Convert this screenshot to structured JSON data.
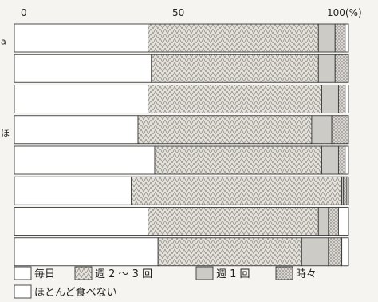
{
  "chart_data": {
    "type": "bar",
    "orientation": "horizontal",
    "stacked": true,
    "xlim": [
      0,
      100
    ],
    "x_tick_labels": [
      "0",
      "50",
      "100(%)"
    ],
    "categories": [
      "",
      "",
      "",
      "",
      "",
      "",
      "",
      ""
    ],
    "side_marks": [
      "a",
      "",
      "",
      "ほ",
      "",
      "",
      "",
      ""
    ],
    "series": [
      {
        "name": "毎日",
        "values": [
          40,
          41,
          40,
          37,
          42,
          35,
          40,
          43
        ]
      },
      {
        "name": "週 2 ～ 3 回",
        "values": [
          51,
          50,
          52,
          52,
          50,
          63,
          51,
          43
        ]
      },
      {
        "name": "週 1 回",
        "values": [
          5,
          5,
          5,
          6,
          5,
          0.5,
          3,
          8
        ]
      },
      {
        "name": "時々",
        "values": [
          3,
          4,
          2,
          5,
          2,
          1,
          3,
          4
        ]
      },
      {
        "name": "ほとんど食べない",
        "values": [
          1,
          0,
          1,
          0,
          1,
          0.5,
          3,
          2
        ]
      }
    ],
    "legend": {
      "placement": "bottom-left",
      "items": [
        "毎日",
        "週 2 ～ 3 回",
        "週 1 回",
        "時々",
        "ほとんど食べない"
      ]
    },
    "colors": {
      "毎日": "#ffffff",
      "週 2 ～ 3 回": "#e6e3dd",
      "週 1 回": "#cdcbc6",
      "時々": "#dad7d2",
      "ほとんど食べない": "#ffffff"
    }
  }
}
